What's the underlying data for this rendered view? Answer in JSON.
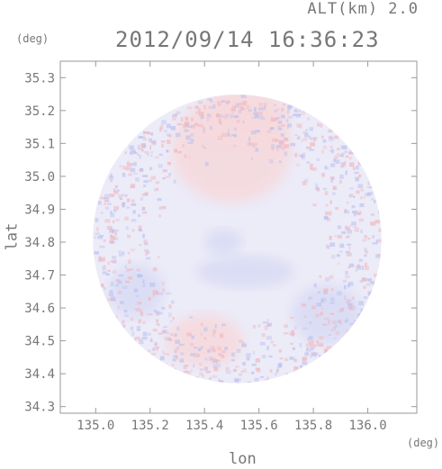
{
  "header": {
    "alt_label": "ALT(km) 2.0",
    "timestamp": "2012/09/14 16:36:23"
  },
  "chart_data": {
    "type": "heatmap",
    "title": "2012/09/14 16:36:23",
    "subtitle": "ALT(km) 2.0",
    "xlabel": "lon",
    "ylabel": "lat",
    "x_unit": "(deg)",
    "y_unit": "(deg)",
    "xlim": [
      134.87,
      136.18
    ],
    "ylim": [
      34.28,
      35.35
    ],
    "xticks": [
      135.0,
      135.2,
      135.4,
      135.6,
      135.8,
      136.0
    ],
    "xtick_labels": [
      "135.0",
      "135.2",
      "135.4",
      "135.6",
      "135.8",
      "136.0"
    ],
    "yticks": [
      34.3,
      34.4,
      34.5,
      34.6,
      34.7,
      34.8,
      34.9,
      35.0,
      35.1,
      35.2,
      35.3
    ],
    "ytick_labels": [
      "34.3",
      "34.4",
      "34.5",
      "34.6",
      "34.7",
      "34.8",
      "34.9",
      "35.0",
      "35.1",
      "35.2",
      "35.3"
    ],
    "radar_center": [
      135.52,
      34.81
    ],
    "radar_radius_deg": 0.53,
    "colors": {
      "background_field": "#ecebf8",
      "positive": "#f6d9dc",
      "negative": "#d9dbf4",
      "frame": "#999999"
    },
    "regions": [
      {
        "sign": "positive",
        "center": [
          135.5,
          35.08
        ],
        "radius": [
          0.22,
          0.16
        ]
      },
      {
        "sign": "positive",
        "center": [
          135.55,
          35.18
        ],
        "radius": [
          0.16,
          0.09
        ]
      },
      {
        "sign": "negative",
        "center": [
          135.55,
          34.71
        ],
        "radius": [
          0.18,
          0.05
        ]
      },
      {
        "sign": "negative",
        "center": [
          135.47,
          34.8
        ],
        "radius": [
          0.07,
          0.04
        ]
      },
      {
        "sign": "positive",
        "center": [
          135.4,
          34.5
        ],
        "radius": [
          0.14,
          0.08
        ]
      },
      {
        "sign": "negative",
        "center": [
          135.85,
          34.58
        ],
        "radius": [
          0.13,
          0.09
        ]
      },
      {
        "sign": "negative",
        "center": [
          135.15,
          34.65
        ],
        "radius": [
          0.1,
          0.08
        ]
      }
    ]
  }
}
